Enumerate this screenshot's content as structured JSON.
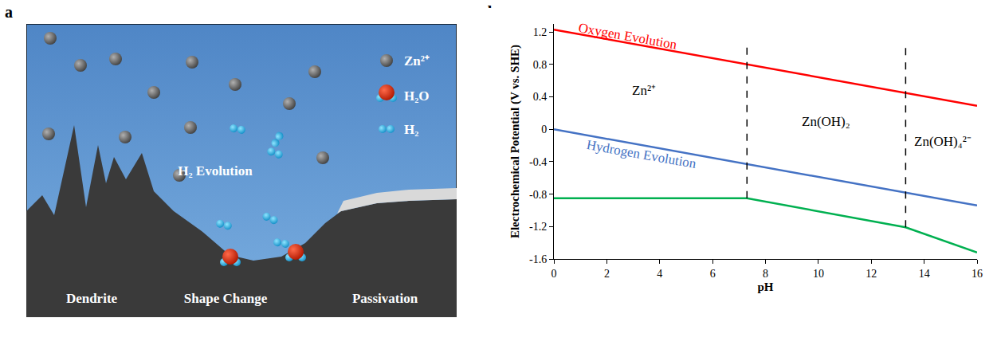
{
  "figure": {
    "panel_labels": [
      "a",
      "b"
    ]
  },
  "diagram": {
    "regions": [
      "Dendrite",
      "Shape Change",
      "Passivation"
    ],
    "process": "H₂ Evolution",
    "legend": [
      {
        "label": "Zn²⁺"
      },
      {
        "label": "H₂O"
      },
      {
        "label": "H₂"
      }
    ]
  },
  "chart_data": {
    "type": "line",
    "x_label": "pH",
    "y_label": "Electrochemical Potential (V vs. SHE)",
    "xlim": [
      0,
      16
    ],
    "xticks": [
      0,
      2,
      4,
      6,
      8,
      10,
      12,
      14,
      16
    ],
    "ylim": [
      -1.6,
      1.3
    ],
    "yticks": [
      -1.6,
      -1.2,
      -0.8,
      -0.4,
      0,
      0.4,
      0.8,
      1.2
    ],
    "grid": false,
    "series": [
      {
        "x": [
          0,
          16
        ],
        "values": [
          1.23,
          0.29
        ],
        "color": "#ff0000",
        "line_style": "solid"
      },
      {
        "x": [
          0,
          16
        ],
        "values": [
          0,
          -0.94
        ],
        "color": "#4472c4",
        "line_style": "solid"
      },
      {
        "x": [
          0,
          7.3,
          13.3,
          16
        ],
        "values": [
          -0.85,
          -0.85,
          -1.21,
          -1.52
        ],
        "color": "#00b050",
        "line_style": "solid"
      },
      {
        "x": [
          7.3,
          7.3
        ],
        "values": [
          -0.85,
          1.04
        ],
        "color": "#000000",
        "line_style": "dashed"
      },
      {
        "x": [
          13.3,
          13.3
        ],
        "values": [
          -1.21,
          1.04
        ],
        "color": "#000000",
        "line_style": "dashed"
      }
    ],
    "annotations": [
      {
        "text": "Oxygen Evolution",
        "x": 2.8,
        "y": 1.15,
        "color": "#ff0000"
      },
      {
        "text": "Hydrogen Evolution",
        "x": 3.3,
        "y": -0.31,
        "color": "#4472c4"
      },
      {
        "text": "Zn²⁺",
        "x": 3.4,
        "y": 0.48,
        "color": "#000000"
      },
      {
        "text": "Zn(OH)₂",
        "x": 10.3,
        "y": 0.1,
        "color": "#000000"
      },
      {
        "text": "Zn(OH)₄²⁻",
        "x": 14.7,
        "y": -0.15,
        "color": "#000000"
      }
    ]
  }
}
